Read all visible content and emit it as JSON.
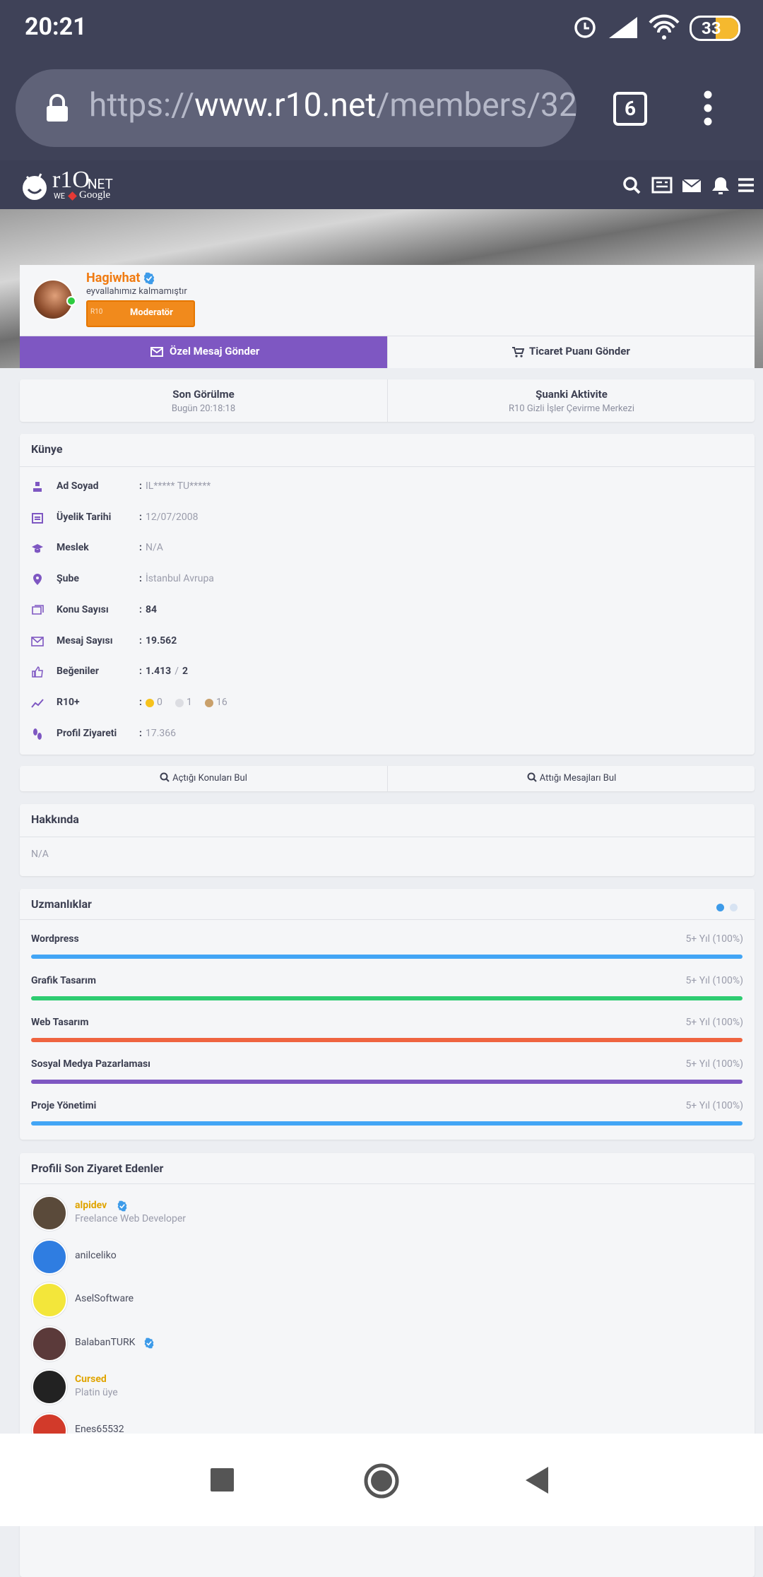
{
  "status_bar": {
    "time": "20:21",
    "battery": "33"
  },
  "browser": {
    "url_scheme": "https://",
    "url_host": "www.r10.net",
    "url_path": "/members/32",
    "tab_count": "6"
  },
  "site_header": {
    "logo": "r1O",
    "logo_suffix": "NET",
    "tagline_we": "WE",
    "tagline_google": "Google"
  },
  "profile": {
    "username": "Hagiwhat",
    "status": "eyvallahımız kalmamıştır",
    "badge_tag": "R10",
    "badge": "Moderatör",
    "buttons": [
      "Özel Mesaj Gönder",
      "Ticaret Puanı Gönder"
    ]
  },
  "activity": [
    {
      "title": "Son Görülme",
      "value": "Bugün 20:18:18"
    },
    {
      "title": "Şuanki Aktivite",
      "value": "R10 Gizli İşler Çevirme Merkezi"
    }
  ],
  "kunye": {
    "title": "Künye",
    "separator": ":",
    "rows": [
      {
        "label": "Ad Soyad",
        "value": "IL***** TU*****"
      },
      {
        "label": "Üyelik Tarihi",
        "value": "12/07/2008"
      },
      {
        "label": "Meslek",
        "value": "N/A"
      },
      {
        "label": "Şube",
        "value": "İstanbul Avrupa"
      },
      {
        "label": "Konu Sayısı",
        "value": "84",
        "bold": true
      },
      {
        "label": "Mesaj Sayısı",
        "value": "19.562",
        "bold": true
      },
      {
        "label": "Beğeniler",
        "value": "1.413",
        "slash": "/",
        "value2": "2",
        "bold": true
      },
      {
        "label": "R10+",
        "medals": [
          {
            "color": "#f6c21c",
            "count": "0"
          },
          {
            "color": "#dcdde2",
            "count": "1"
          },
          {
            "color": "#c9a06b",
            "count": "16"
          }
        ]
      },
      {
        "label": "Profil Ziyareti",
        "value": "17.366"
      }
    ]
  },
  "search_buttons": [
    "Açtığı Konuları Bul",
    "Attığı Mesajları Bul"
  ],
  "about": {
    "title": "Hakkında",
    "text": "N/A"
  },
  "skills": {
    "title": "Uzmanlıklar",
    "items": [
      {
        "name": "Wordpress",
        "level": "5+ Yıl (100%)",
        "color": "#42a5f5"
      },
      {
        "name": "Grafik Tasarım",
        "level": "5+ Yıl (100%)",
        "color": "#2ecc71"
      },
      {
        "name": "Web Tasarım",
        "level": "5+ Yıl (100%)",
        "color": "#ef6440"
      },
      {
        "name": "Sosyal Medya Pazarlaması",
        "level": "5+ Yıl (100%)",
        "color": "#7e57c2"
      },
      {
        "name": "Proje Yönetimi",
        "level": "5+ Yıl (100%)",
        "color": "#42a5f5"
      }
    ]
  },
  "visitors": {
    "title": "Profili Son Ziyaret Edenler",
    "items": [
      {
        "name": "alpidev",
        "title": "Freelance Web Developer",
        "verified": true,
        "color": "#e0a400",
        "avatar": "#5a4a3a"
      },
      {
        "name": "anilceliko",
        "color": "#4a4d5e",
        "avatar": "#2f7de1"
      },
      {
        "name": "AselSoftware",
        "color": "#4a4d5e",
        "avatar": "#f3e63a"
      },
      {
        "name": "BalabanTURK",
        "verified": true,
        "color": "#4a4d5e",
        "avatar": "#5b3a3a"
      },
      {
        "name": "Cursed",
        "title": "Platin üye",
        "color": "#e0a400",
        "avatar": "#222222"
      },
      {
        "name": "Enes65532",
        "color": "#4a4d5e",
        "avatar": "#d23a2a"
      }
    ]
  }
}
